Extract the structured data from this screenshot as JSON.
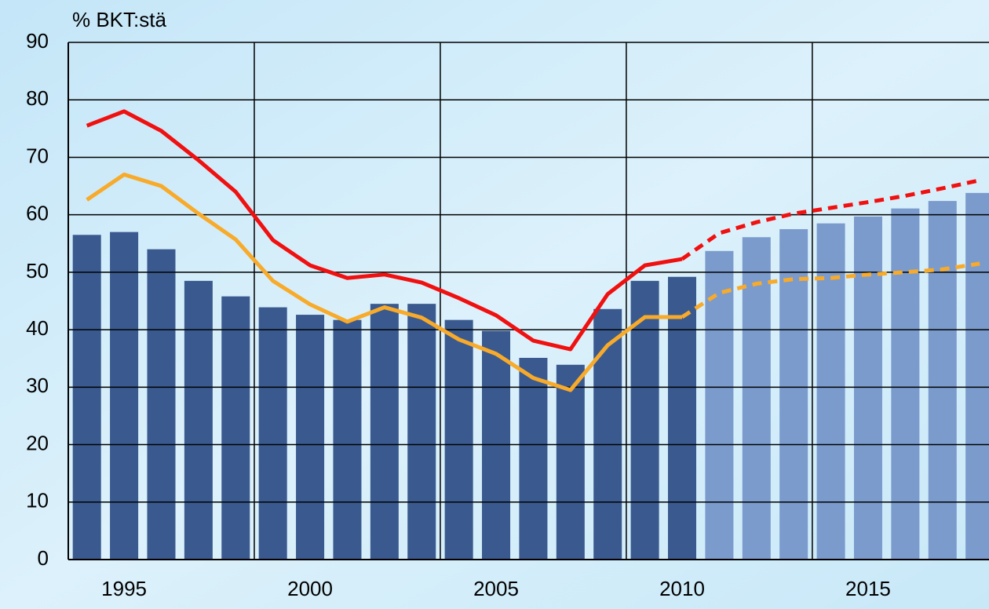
{
  "chart_data": {
    "type": "bar_line",
    "ylabel": "% BKT:stä",
    "x": [
      1994,
      1995,
      1996,
      1997,
      1998,
      1999,
      2000,
      2001,
      2002,
      2003,
      2004,
      2005,
      2006,
      2007,
      2008,
      2009,
      2010,
      2011,
      2012,
      2013,
      2014,
      2015,
      2016,
      2017,
      2018
    ],
    "bar_values": [
      56.5,
      57,
      54,
      48.5,
      45.8,
      43.9,
      42.6,
      41.7,
      44.5,
      44.5,
      41.7,
      39.8,
      35.1,
      33.9,
      43.6,
      48.5,
      49.2,
      53.7,
      56.1,
      57.5,
      58.5,
      59.7,
      61.1,
      62.4,
      63.8
    ],
    "bar_color": "#3a5a8f",
    "forecast_bar_color": "#7b9bcd",
    "forecast_from": 2010,
    "series": [
      {
        "color": "#f01010",
        "values": [
          75.5,
          78,
          74.6,
          69.5,
          64,
          55.6,
          51.2,
          49,
          49.6,
          48.2,
          45.5,
          42.5,
          38.1,
          36.6,
          46.2,
          51.2,
          52.3,
          56.8,
          58.7,
          60.2,
          61.2,
          62.2,
          63.3,
          64.6,
          66
        ]
      },
      {
        "color": "#f8aa2a",
        "values": [
          62.6,
          67,
          65,
          60.2,
          55.7,
          48.5,
          44.4,
          41.4,
          43.9,
          42.1,
          38.3,
          35.8,
          31.6,
          29.5,
          37.3,
          42.2,
          42.2,
          46.4,
          48,
          48.8,
          49,
          49.6,
          50,
          50.5,
          51.5
        ]
      }
    ],
    "xlim": [
      1993.5,
      2018.25
    ],
    "xticks": [
      1995,
      2000,
      2005,
      2010,
      2015
    ],
    "xgrid": [
      1998.5,
      2003.5,
      2008.5,
      2013.5
    ],
    "ylim": [
      0,
      90
    ],
    "yticks": [
      0,
      10,
      20,
      30,
      40,
      50,
      60,
      70,
      80,
      90
    ],
    "grid": true
  }
}
